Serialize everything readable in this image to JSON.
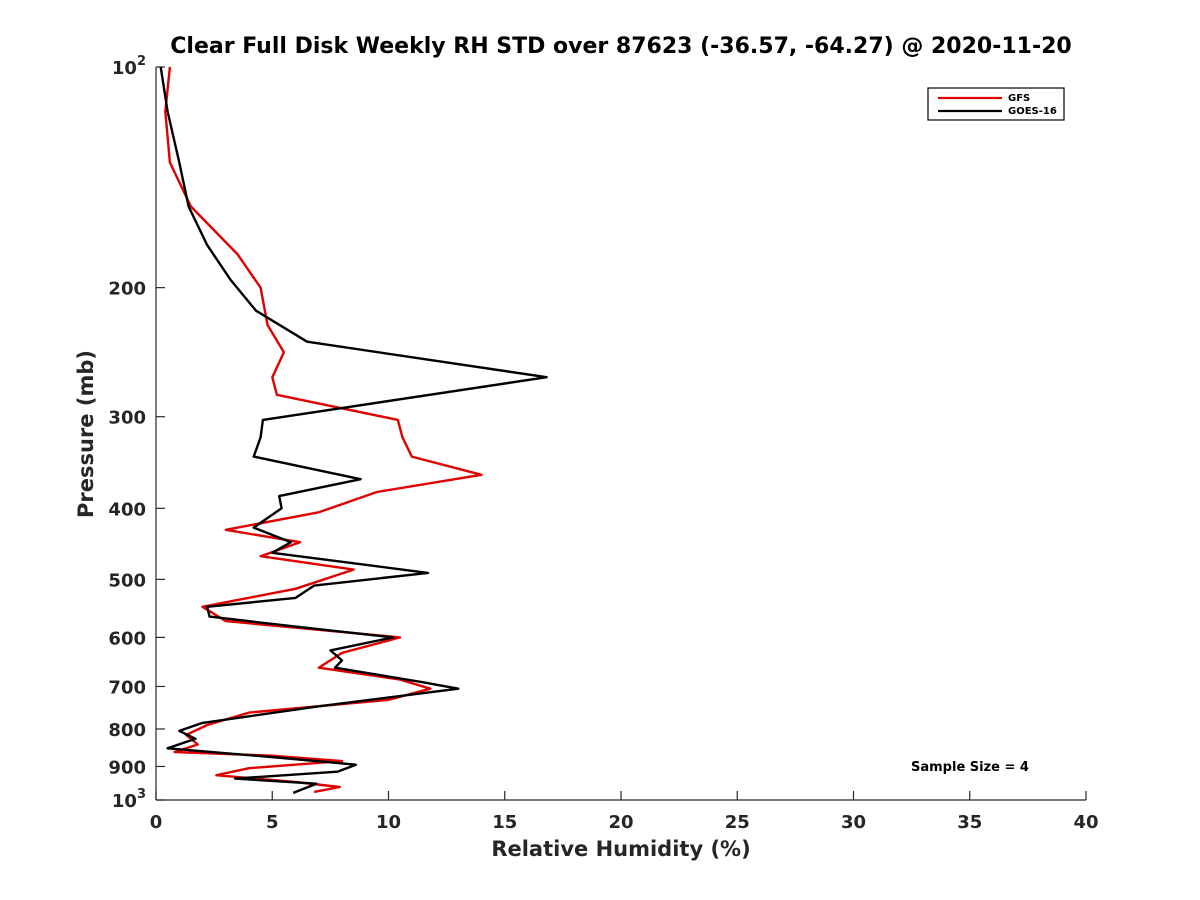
{
  "chart_data": {
    "type": "line",
    "title": "Clear Full Disk Weekly RH STD over 87623 (-36.57, -64.27) @ 2020-11-20",
    "xlabel": "Relative Humidity (%)",
    "ylabel": "Pressure (mb)",
    "xlim": [
      0,
      40
    ],
    "ylim": [
      100,
      1000
    ],
    "y_scale": "log",
    "y_reversed": true,
    "grid": false,
    "legend_position": "top-right",
    "x_ticks": [
      "0",
      "5",
      "10",
      "15",
      "20",
      "25",
      "30",
      "35",
      "40"
    ],
    "y_ticks": [
      {
        "value": 100,
        "base": "10",
        "exp": "2"
      },
      {
        "value": 200,
        "label": "200"
      },
      {
        "value": 300,
        "label": "300"
      },
      {
        "value": 400,
        "label": "400"
      },
      {
        "value": 500,
        "label": "500"
      },
      {
        "value": 600,
        "label": "600"
      },
      {
        "value": 700,
        "label": "700"
      },
      {
        "value": 800,
        "label": "800"
      },
      {
        "value": 900,
        "label": "900"
      },
      {
        "value": 1000,
        "base": "10",
        "exp": "3"
      }
    ],
    "annotation": "Sample Size = 4",
    "series": [
      {
        "name": "GFS",
        "color": "#e00000",
        "points": [
          [
            0.6,
            100
          ],
          [
            0.4,
            115
          ],
          [
            0.6,
            135
          ],
          [
            1.5,
            155
          ],
          [
            3.5,
            180
          ],
          [
            4.5,
            200
          ],
          [
            4.8,
            225
          ],
          [
            5.5,
            245
          ],
          [
            5.0,
            265
          ],
          [
            5.2,
            280
          ],
          [
            10.4,
            303
          ],
          [
            10.6,
            320
          ],
          [
            11.0,
            340
          ],
          [
            14.0,
            360
          ],
          [
            9.5,
            380
          ],
          [
            7.0,
            405
          ],
          [
            3.0,
            428
          ],
          [
            6.2,
            445
          ],
          [
            4.5,
            465
          ],
          [
            8.5,
            485
          ],
          [
            6.0,
            515
          ],
          [
            2.0,
            545
          ],
          [
            3.0,
            570
          ],
          [
            10.5,
            600
          ],
          [
            8.0,
            630
          ],
          [
            7.0,
            660
          ],
          [
            10.5,
            685
          ],
          [
            11.8,
            705
          ],
          [
            10.0,
            730
          ],
          [
            4.0,
            760
          ],
          [
            2.2,
            790
          ],
          [
            1.3,
            815
          ],
          [
            1.8,
            840
          ],
          [
            0.8,
            860
          ],
          [
            5.0,
            870
          ],
          [
            8.0,
            885
          ],
          [
            4.0,
            905
          ],
          [
            2.6,
            925
          ],
          [
            6.0,
            945
          ],
          [
            7.9,
            960
          ],
          [
            6.8,
            975
          ]
        ]
      },
      {
        "name": "GOES-16",
        "color": "#000000",
        "points": [
          [
            0.2,
            100
          ],
          [
            0.5,
            115
          ],
          [
            1.0,
            135
          ],
          [
            1.4,
            155
          ],
          [
            2.2,
            175
          ],
          [
            3.2,
            195
          ],
          [
            4.3,
            215
          ],
          [
            6.5,
            237
          ],
          [
            16.8,
            265
          ],
          [
            4.6,
            303
          ],
          [
            4.5,
            320
          ],
          [
            4.2,
            340
          ],
          [
            8.8,
            365
          ],
          [
            5.3,
            385
          ],
          [
            5.4,
            400
          ],
          [
            4.2,
            425
          ],
          [
            5.8,
            445
          ],
          [
            5.0,
            460
          ],
          [
            11.7,
            490
          ],
          [
            6.8,
            510
          ],
          [
            6.0,
            530
          ],
          [
            2.2,
            545
          ],
          [
            2.3,
            562
          ],
          [
            6.0,
            580
          ],
          [
            10.2,
            600
          ],
          [
            7.5,
            625
          ],
          [
            8.0,
            645
          ],
          [
            7.7,
            660
          ],
          [
            11.4,
            690
          ],
          [
            13.0,
            705
          ],
          [
            7.0,
            745
          ],
          [
            2.0,
            785
          ],
          [
            1.0,
            805
          ],
          [
            1.7,
            825
          ],
          [
            0.5,
            850
          ],
          [
            5.2,
            875
          ],
          [
            8.6,
            895
          ],
          [
            7.8,
            915
          ],
          [
            3.4,
            935
          ],
          [
            6.9,
            950
          ],
          [
            5.9,
            978
          ]
        ]
      }
    ]
  }
}
